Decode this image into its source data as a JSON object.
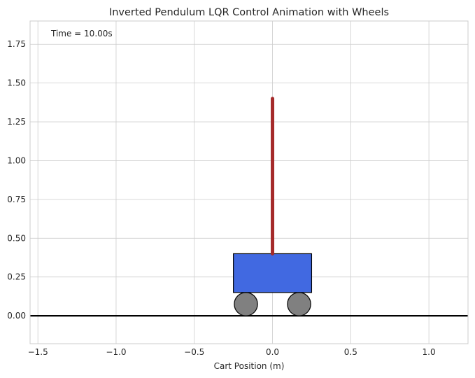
{
  "chart_data": {
    "type": "line",
    "title": "Inverted Pendulum LQR Control Animation with Wheels",
    "xlabel": "Cart Position (m)",
    "ylabel": "",
    "xlim": [
      -1.55,
      1.25
    ],
    "ylim": [
      -0.18,
      1.9
    ],
    "xticks": [
      -1.5,
      -1.0,
      -0.5,
      0.0,
      0.5,
      1.0
    ],
    "xtick_labels": [
      "−1.5",
      "−1.0",
      "−0.5",
      "0.0",
      "0.5",
      "1.0"
    ],
    "yticks": [
      0.0,
      0.25,
      0.5,
      0.75,
      1.0,
      1.25,
      1.5,
      1.75
    ],
    "ytick_labels": [
      "0.00",
      "0.25",
      "0.50",
      "0.75",
      "1.00",
      "1.25",
      "1.50",
      "1.75"
    ],
    "grid": true,
    "annotation": "Time = 10.00s",
    "ground": {
      "y": 0.0,
      "color": "#000000"
    },
    "cart": {
      "x_min": -0.25,
      "x_max": 0.25,
      "y_min": 0.15,
      "y_max": 0.4,
      "color": "#4169e1"
    },
    "wheels": [
      {
        "cx": -0.17,
        "cy": 0.075,
        "r": 0.075,
        "color": "#808080"
      },
      {
        "cx": 0.17,
        "cy": 0.075,
        "r": 0.075,
        "color": "#808080"
      }
    ],
    "pendulum": {
      "x": [
        0.0,
        0.0
      ],
      "y": [
        0.4,
        1.4
      ],
      "color": "#a52a2a"
    }
  }
}
